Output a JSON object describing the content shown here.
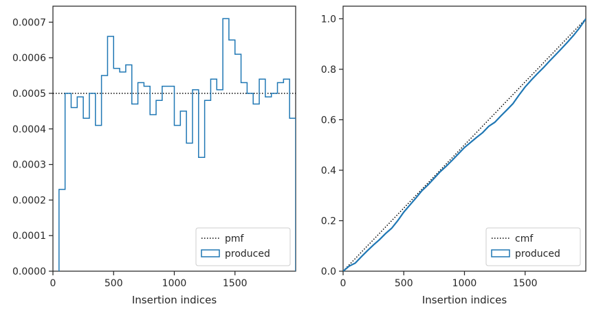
{
  "chart_data": [
    {
      "type": "step",
      "title": "",
      "xlabel": "Insertion indices",
      "ylabel": "",
      "xlim": [
        0,
        2000
      ],
      "ylim": [
        0,
        0.000745
      ],
      "xticks": [
        0,
        500,
        1000,
        1500
      ],
      "xtick_labels": [
        "0",
        "500",
        "1000",
        "1500"
      ],
      "yticks": [
        0,
        0.0001,
        0.0002,
        0.0003,
        0.0004,
        0.0005,
        0.0006,
        0.0007
      ],
      "ytick_labels": [
        "0.0000",
        "0.0001",
        "0.0002",
        "0.0003",
        "0.0004",
        "0.0005",
        "0.0006",
        "0.0007"
      ],
      "legend_position": "lower-right",
      "series": [
        {
          "name": "pmf",
          "style": "dotted",
          "color": "#000000",
          "x": [
            0,
            2000
          ],
          "y": [
            0.0005,
            0.0005
          ]
        },
        {
          "name": "produced",
          "style": "step-histogram",
          "color": "#1f77b4",
          "bin_edges": [
            50,
            100,
            150,
            200,
            250,
            300,
            350,
            400,
            450,
            500,
            550,
            600,
            650,
            700,
            750,
            800,
            850,
            900,
            950,
            1000,
            1050,
            1100,
            1150,
            1200,
            1250,
            1300,
            1350,
            1400,
            1450,
            1500,
            1550,
            1600,
            1650,
            1700,
            1750,
            1800,
            1850,
            1900,
            1950,
            2000
          ],
          "values": [
            0.00023,
            0.0005,
            0.00046,
            0.00049,
            0.00043,
            0.0005,
            0.00041,
            0.00055,
            0.00066,
            0.00057,
            0.00056,
            0.00058,
            0.00047,
            0.00053,
            0.00052,
            0.00044,
            0.00048,
            0.00052,
            0.00052,
            0.00041,
            0.00045,
            0.00036,
            0.00051,
            0.00032,
            0.00048,
            0.00054,
            0.00051,
            0.00071,
            0.00065,
            0.00061,
            0.00053,
            0.0005,
            0.00047,
            0.00054,
            0.00049,
            0.0005,
            0.00053,
            0.00054,
            0.00043
          ]
        }
      ]
    },
    {
      "type": "line",
      "title": "",
      "xlabel": "Insertion indices",
      "ylabel": "",
      "xlim": [
        0,
        2000
      ],
      "ylim": [
        0,
        1.05
      ],
      "xticks": [
        0,
        500,
        1000,
        1500
      ],
      "xtick_labels": [
        "0",
        "500",
        "1000",
        "1500"
      ],
      "yticks": [
        0,
        0.2,
        0.4,
        0.6,
        0.8,
        1.0
      ],
      "ytick_labels": [
        "0.0",
        "0.2",
        "0.4",
        "0.6",
        "0.8",
        "1.0"
      ],
      "legend_position": "lower-right",
      "series": [
        {
          "name": "cmf",
          "style": "dotted",
          "color": "#000000",
          "x": [
            0,
            2000
          ],
          "y": [
            0,
            1.0
          ]
        },
        {
          "name": "produced",
          "style": "solid",
          "color": "#1f77b4",
          "x": [
            0,
            50,
            100,
            150,
            200,
            250,
            300,
            350,
            400,
            450,
            500,
            550,
            600,
            650,
            700,
            750,
            800,
            850,
            900,
            950,
            1000,
            1050,
            1100,
            1150,
            1200,
            1250,
            1300,
            1350,
            1400,
            1450,
            1500,
            1550,
            1600,
            1650,
            1700,
            1750,
            1800,
            1850,
            1900,
            1950,
            2000
          ],
          "y": [
            0,
            0.02,
            0.032,
            0.057,
            0.081,
            0.104,
            0.125,
            0.149,
            0.17,
            0.2,
            0.234,
            0.262,
            0.29,
            0.319,
            0.342,
            0.368,
            0.394,
            0.416,
            0.44,
            0.465,
            0.49,
            0.51,
            0.53,
            0.549,
            0.574,
            0.59,
            0.615,
            0.639,
            0.664,
            0.698,
            0.73,
            0.757,
            0.782,
            0.806,
            0.832,
            0.857,
            0.882,
            0.908,
            0.935,
            0.965,
            1.0
          ]
        }
      ]
    }
  ]
}
